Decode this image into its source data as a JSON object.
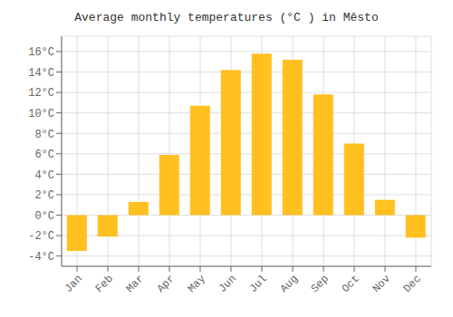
{
  "chart_data": {
    "type": "bar",
    "title": "Average monthly temperatures (°C ) in Město",
    "categories": [
      "Jan",
      "Feb",
      "Mar",
      "Apr",
      "May",
      "Jun",
      "Jul",
      "Aug",
      "Sep",
      "Oct",
      "Nov",
      "Dec"
    ],
    "values": [
      -3.5,
      -2.1,
      1.3,
      5.9,
      10.7,
      14.2,
      15.8,
      15.2,
      11.8,
      7.0,
      1.5,
      -2.2
    ],
    "color": "#FFC020",
    "ylim": [
      -5.0,
      17.5
    ],
    "yticks": [
      {
        "value": -4,
        "label": "-4°C"
      },
      {
        "value": -2,
        "label": "-2°C"
      },
      {
        "value": 0,
        "label": "0°C"
      },
      {
        "value": 2,
        "label": "2°C"
      },
      {
        "value": 4,
        "label": "4°C"
      },
      {
        "value": 6,
        "label": "6°C"
      },
      {
        "value": 8,
        "label": "8°C"
      },
      {
        "value": 10,
        "label": "10°C"
      },
      {
        "value": 12,
        "label": "12°C"
      },
      {
        "value": 14,
        "label": "14°C"
      },
      {
        "value": 16,
        "label": "16°C"
      }
    ],
    "grid": true
  }
}
